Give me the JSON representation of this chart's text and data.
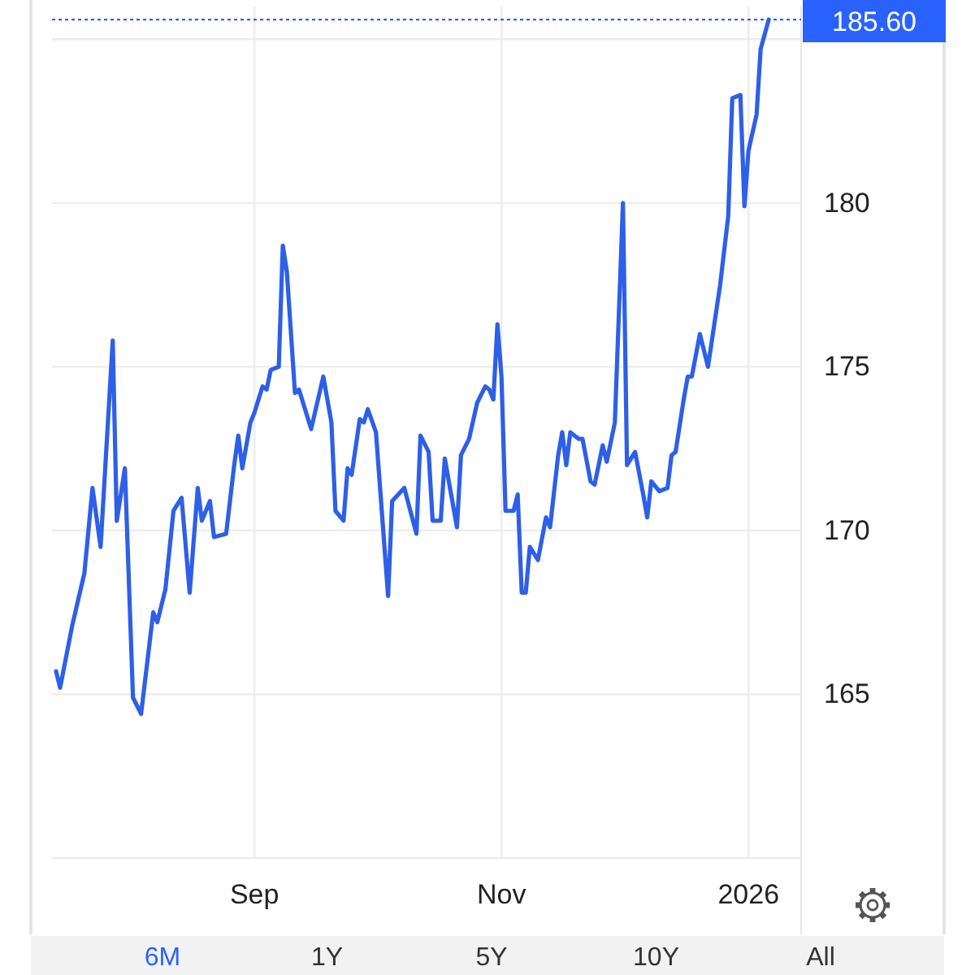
{
  "chart_data": {
    "type": "line",
    "x": [
      "2025-07-14",
      "2025-07-15",
      "2025-07-18",
      "2025-07-21",
      "2025-07-23",
      "2025-07-25",
      "2025-07-28",
      "2025-07-29",
      "2025-07-31",
      "2025-08-02",
      "2025-08-04",
      "2025-08-07",
      "2025-08-08",
      "2025-08-10",
      "2025-08-12",
      "2025-08-14",
      "2025-08-16",
      "2025-08-18",
      "2025-08-19",
      "2025-08-21",
      "2025-08-22",
      "2025-08-25",
      "2025-08-27",
      "2025-08-28",
      "2025-08-29",
      "2025-08-31",
      "2025-09-01",
      "2025-09-03",
      "2025-09-04",
      "2025-09-05",
      "2025-09-07",
      "2025-09-08",
      "2025-09-09",
      "2025-09-11",
      "2025-09-12",
      "2025-09-15",
      "2025-09-18",
      "2025-09-20",
      "2025-09-21",
      "2025-09-23",
      "2025-09-24",
      "2025-09-25",
      "2025-09-27",
      "2025-09-28",
      "2025-09-29",
      "2025-10-01",
      "2025-10-04",
      "2025-10-05",
      "2025-10-08",
      "2025-10-11",
      "2025-10-12",
      "2025-10-14",
      "2025-10-15",
      "2025-10-17",
      "2025-10-18",
      "2025-10-21",
      "2025-10-22",
      "2025-10-24",
      "2025-10-26",
      "2025-10-28",
      "2025-10-29",
      "2025-10-30",
      "2025-10-31",
      "2025-11-01",
      "2025-11-02",
      "2025-11-04",
      "2025-11-05",
      "2025-11-06",
      "2025-11-07",
      "2025-11-08",
      "2025-11-10",
      "2025-11-12",
      "2025-11-13",
      "2025-11-15",
      "2025-11-16",
      "2025-11-17",
      "2025-11-18",
      "2025-11-20",
      "2025-11-21",
      "2025-11-23",
      "2025-11-24",
      "2025-11-26",
      "2025-11-27",
      "2025-11-29",
      "2025-12-01",
      "2025-12-02",
      "2025-12-04",
      "2025-12-06",
      "2025-12-07",
      "2025-12-08",
      "2025-12-10",
      "2025-12-12",
      "2025-12-13",
      "2025-12-14",
      "2025-12-16",
      "2025-12-17",
      "2025-12-18",
      "2025-12-20",
      "2025-12-22",
      "2025-12-25",
      "2025-12-27",
      "2025-12-28",
      "2025-12-30",
      "2025-12-31",
      "2026-01-01",
      "2026-01-03",
      "2026-01-04",
      "2026-01-06"
    ],
    "series": [
      {
        "color": "#2e5fe8",
        "values": [
          165.7,
          165.2,
          167.1,
          168.7,
          171.3,
          169.5,
          175.8,
          170.3,
          171.9,
          164.9,
          164.4,
          167.5,
          167.2,
          168.2,
          170.6,
          171.0,
          168.1,
          171.3,
          170.3,
          170.9,
          169.8,
          169.9,
          172.0,
          172.9,
          171.9,
          173.3,
          173.6,
          174.4,
          174.3,
          174.9,
          175.0,
          178.7,
          177.9,
          174.2,
          174.3,
          173.1,
          174.7,
          173.3,
          170.6,
          170.3,
          171.9,
          171.7,
          173.4,
          173.3,
          173.7,
          173.0,
          168.0,
          170.9,
          171.3,
          169.9,
          172.9,
          172.4,
          170.3,
          170.3,
          172.2,
          170.1,
          172.3,
          172.8,
          173.9,
          174.4,
          174.3,
          174.0,
          176.3,
          174.7,
          170.6,
          170.6,
          171.1,
          168.1,
          168.1,
          169.5,
          169.1,
          170.4,
          170.1,
          172.3,
          173.0,
          172.0,
          173.0,
          172.8,
          172.8,
          171.5,
          171.4,
          172.6,
          172.1,
          173.3,
          180.0,
          172.0,
          172.4,
          171.1,
          170.4,
          171.5,
          171.2,
          171.3,
          172.3,
          172.4,
          174.0,
          174.7,
          174.7,
          176.0,
          175.0,
          177.5,
          179.6,
          183.2,
          183.3,
          179.9,
          181.6,
          182.7,
          184.7,
          185.6
        ]
      }
    ],
    "xlim": [
      "2025-07-13",
      "2026-01-14"
    ],
    "xticks": [
      {
        "value": "2025-09-01",
        "label": "Sep"
      },
      {
        "value": "2025-11-01",
        "label": "Nov"
      },
      {
        "value": "2026-01-01",
        "label": "2026"
      }
    ],
    "ylim": [
      160,
      186
    ],
    "yticks": [
      {
        "value": 160,
        "label": null
      },
      165,
      170,
      175,
      180,
      {
        "value": 185,
        "label": null
      }
    ],
    "grid": true,
    "ref_lines": [
      {
        "axis": "y",
        "value": 185.6,
        "label": "185.60",
        "color": "#2962ff",
        "line_style": "dotted"
      }
    ],
    "annotations": [
      "6M",
      "1Y",
      "5Y",
      "10Y",
      "All"
    ]
  }
}
